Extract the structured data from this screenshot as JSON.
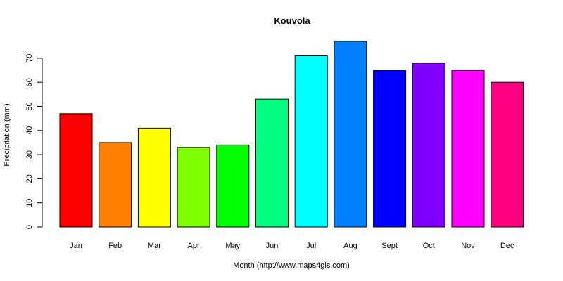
{
  "chart_data": {
    "type": "bar",
    "title": "Kouvola",
    "xlabel": "Month (http://www.maps4gis.com)",
    "ylabel": "Precipitation (mm)",
    "categories": [
      "Jan",
      "Feb",
      "Mar",
      "Apr",
      "May",
      "Jun",
      "Jul",
      "Aug",
      "Sept",
      "Oct",
      "Nov",
      "Dec"
    ],
    "values": [
      47,
      35,
      41,
      33,
      34,
      53,
      71,
      77,
      65,
      68,
      65,
      60
    ],
    "colors": [
      "#FF0000",
      "#FF8000",
      "#FFFF00",
      "#80FF00",
      "#00FF00",
      "#00FF80",
      "#00FFFF",
      "#0080FF",
      "#0000FF",
      "#8000FF",
      "#FF00FF",
      "#FF0080"
    ],
    "yticks": [
      0,
      10,
      20,
      30,
      40,
      50,
      60,
      70
    ],
    "ylim": [
      0,
      77
    ],
    "grid": false,
    "legend": null
  }
}
